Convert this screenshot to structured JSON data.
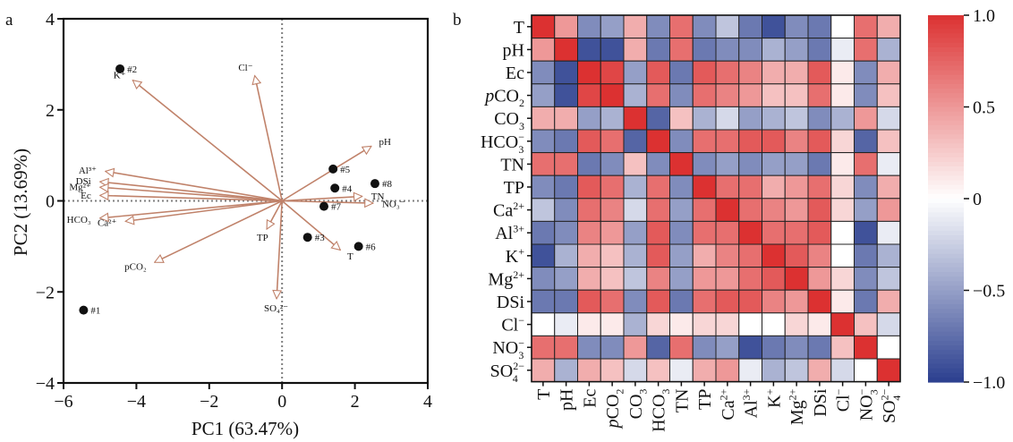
{
  "chart_data": [
    {
      "panel_label": "a",
      "type": "scatter",
      "subtype": "pca-biplot",
      "xlabel": "PC1 (63.47%)",
      "ylabel": "PC2 (13.69%)",
      "xlim": [
        -6,
        4
      ],
      "ylim": [
        -4,
        4
      ],
      "xticks": [
        -6,
        -4,
        -2,
        0,
        2,
        4
      ],
      "yticks": [
        -4,
        -2,
        0,
        2,
        4
      ],
      "xtick_labels": [
        "−6",
        "−4",
        "−2",
        "0",
        "2",
        "4"
      ],
      "ytick_labels": [
        "−4",
        "−2",
        "0",
        "2",
        "4"
      ],
      "zero_lines": "dotted",
      "grid": false,
      "arrow_color": "#c0826a",
      "point_color": "#111111",
      "points": [
        {
          "label": "#1",
          "x": -5.45,
          "y": -2.4
        },
        {
          "label": "#2",
          "x": -4.45,
          "y": 2.9
        },
        {
          "label": "#3",
          "x": 0.7,
          "y": -0.8
        },
        {
          "label": "#4",
          "x": 1.45,
          "y": 0.28
        },
        {
          "label": "#5",
          "x": 1.4,
          "y": 0.7
        },
        {
          "label": "#6",
          "x": 2.1,
          "y": -1.0
        },
        {
          "label": "#7",
          "x": 1.15,
          "y": -0.12
        },
        {
          "label": "#8",
          "x": 2.55,
          "y": 0.38
        }
      ],
      "loadings": [
        {
          "label": "K⁺",
          "x": -4.1,
          "y": 2.65
        },
        {
          "label": "Cl⁻",
          "x": -0.75,
          "y": 2.75
        },
        {
          "label": "pH",
          "x": 2.45,
          "y": 1.2
        },
        {
          "label": "Al³⁺",
          "x": -4.85,
          "y": 0.65
        },
        {
          "label": "DSi",
          "x": -5.0,
          "y": 0.42
        },
        {
          "label": "Mg²⁺",
          "x": -5.0,
          "y": 0.3
        },
        {
          "label": "Ec",
          "x": -5.0,
          "y": 0.12
        },
        {
          "label": "HCO₃",
          "x": -5.0,
          "y": -0.38
        },
        {
          "label": "Ca²⁺",
          "x": -4.3,
          "y": -0.45
        },
        {
          "label": "pCO₂",
          "x": -3.5,
          "y": -1.35
        },
        {
          "label": "TP",
          "x": -0.42,
          "y": -0.62
        },
        {
          "label": "T",
          "x": 1.6,
          "y": -1.08
        },
        {
          "label": "TN",
          "x": 2.2,
          "y": 0.1
        },
        {
          "label": "NO₃⁻",
          "x": 2.5,
          "y": -0.05
        },
        {
          "label": "SO₄²⁻",
          "x": -0.15,
          "y": -2.15
        }
      ]
    },
    {
      "panel_label": "b",
      "type": "heatmap",
      "subtype": "correlation-matrix",
      "variables": [
        "T",
        "pH",
        "Ec",
        "pCO2",
        "CO3",
        "HCO3",
        "TN",
        "TP",
        "Ca2+",
        "Al3+",
        "K+",
        "Mg2+",
        "DSi",
        "Cl-",
        "NO3-",
        "SO42-"
      ],
      "row_labels": [
        {
          "base": "T"
        },
        {
          "base": "pH"
        },
        {
          "base": "Ec"
        },
        {
          "pre": "p",
          "base": "CO",
          "sub": "2"
        },
        {
          "base": "CO",
          "sub": "3"
        },
        {
          "base": "HCO",
          "sub": "3",
          "sup": "−"
        },
        {
          "base": "TN"
        },
        {
          "base": "TP"
        },
        {
          "base": "Ca",
          "sup": "2+"
        },
        {
          "base": "Al",
          "sup": "3+"
        },
        {
          "base": "K",
          "sup": "+"
        },
        {
          "base": "Mg",
          "sup": "2+"
        },
        {
          "base": "DSi"
        },
        {
          "base": "Cl",
          "sup": "−"
        },
        {
          "base": "NO",
          "sub": "3",
          "sup": "−"
        },
        {
          "base": "SO",
          "sub": "4",
          "sup": "2−"
        }
      ],
      "col_labels": [
        {
          "base": "T"
        },
        {
          "base": "pH"
        },
        {
          "base": "Ec"
        },
        {
          "pre": "p",
          "base": "CO",
          "sub": "2"
        },
        {
          "base": "CO",
          "sub": "3"
        },
        {
          "base": "HCO",
          "sub": "3"
        },
        {
          "base": "TN"
        },
        {
          "base": "TP"
        },
        {
          "base": "Ca",
          "sup": "2+"
        },
        {
          "base": "Al",
          "sup": "3+"
        },
        {
          "base": "K",
          "sup": "+"
        },
        {
          "base": "Mg",
          "sup": "2+"
        },
        {
          "base": "DSi"
        },
        {
          "base": "Cl",
          "sup": "−"
        },
        {
          "base": "NO",
          "sub": "3",
          "sup": "−"
        },
        {
          "base": "SO",
          "sub": "4",
          "sup": "2−"
        }
      ],
      "matrix": [
        [
          1.0,
          0.5,
          -0.6,
          -0.5,
          0.4,
          -0.6,
          0.7,
          -0.6,
          -0.3,
          -0.7,
          -0.9,
          -0.6,
          -0.7,
          0.0,
          0.7,
          0.4
        ],
        [
          0.5,
          1.0,
          -0.9,
          -0.9,
          0.4,
          -0.7,
          0.7,
          -0.7,
          -0.6,
          -0.6,
          -0.4,
          -0.5,
          -0.7,
          -0.1,
          0.7,
          -0.4
        ],
        [
          -0.6,
          -0.9,
          1.0,
          0.9,
          -0.5,
          0.8,
          -0.7,
          0.8,
          0.7,
          0.6,
          0.4,
          0.4,
          0.8,
          0.1,
          -0.6,
          0.4
        ],
        [
          -0.5,
          -0.9,
          0.9,
          1.0,
          -0.4,
          0.7,
          -0.6,
          0.7,
          0.6,
          0.5,
          0.3,
          0.3,
          0.7,
          0.1,
          -0.6,
          0.3
        ],
        [
          0.4,
          0.4,
          -0.5,
          -0.4,
          1.0,
          -0.8,
          0.3,
          -0.4,
          -0.2,
          -0.5,
          -0.4,
          -0.3,
          -0.6,
          -0.4,
          0.5,
          -0.2
        ],
        [
          -0.6,
          -0.7,
          0.8,
          0.7,
          -0.8,
          1.0,
          -0.6,
          0.7,
          0.7,
          0.8,
          0.8,
          0.6,
          0.8,
          0.2,
          -0.8,
          0.3
        ],
        [
          0.7,
          0.7,
          -0.7,
          -0.6,
          0.3,
          -0.6,
          1.0,
          -0.6,
          -0.5,
          -0.6,
          -0.5,
          -0.5,
          -0.7,
          0.1,
          0.7,
          -0.1
        ],
        [
          -0.6,
          -0.7,
          0.8,
          0.7,
          -0.4,
          0.7,
          -0.6,
          1.0,
          0.7,
          0.7,
          0.4,
          0.5,
          0.7,
          0.2,
          -0.6,
          0.4
        ],
        [
          -0.3,
          -0.6,
          0.7,
          0.6,
          -0.2,
          0.7,
          -0.5,
          0.7,
          1.0,
          0.7,
          0.6,
          0.5,
          0.8,
          0.2,
          -0.5,
          0.5
        ],
        [
          -0.7,
          -0.6,
          0.6,
          0.5,
          -0.5,
          0.8,
          -0.6,
          0.7,
          0.7,
          1.0,
          0.7,
          0.7,
          0.8,
          0.0,
          -0.9,
          -0.1
        ],
        [
          -0.9,
          -0.4,
          0.4,
          0.3,
          -0.4,
          0.8,
          -0.5,
          0.4,
          0.6,
          0.7,
          1.0,
          0.8,
          0.6,
          0.0,
          -0.7,
          -0.4
        ],
        [
          -0.6,
          -0.5,
          0.4,
          0.3,
          -0.3,
          0.6,
          -0.5,
          0.5,
          0.5,
          0.7,
          0.8,
          1.0,
          0.5,
          0.2,
          -0.6,
          -0.3
        ],
        [
          -0.7,
          -0.7,
          0.8,
          0.7,
          -0.6,
          0.8,
          -0.7,
          0.7,
          0.8,
          0.8,
          0.6,
          0.5,
          1.0,
          0.1,
          -0.7,
          0.4
        ],
        [
          0.0,
          -0.1,
          0.1,
          0.1,
          -0.4,
          0.2,
          0.1,
          0.2,
          0.2,
          0.0,
          0.0,
          0.2,
          0.1,
          1.0,
          0.3,
          -0.2
        ],
        [
          0.7,
          0.7,
          -0.6,
          -0.6,
          0.5,
          -0.8,
          0.7,
          -0.6,
          -0.5,
          -0.9,
          -0.7,
          -0.6,
          -0.7,
          0.3,
          1.0,
          0.0
        ],
        [
          0.4,
          -0.4,
          0.4,
          0.3,
          -0.2,
          0.3,
          -0.1,
          0.4,
          0.5,
          -0.1,
          -0.4,
          -0.3,
          0.4,
          -0.2,
          0.0,
          1.0
        ]
      ],
      "colorbar": {
        "min": -1.0,
        "max": 1.0,
        "ticks": [
          1.0,
          0.5,
          0,
          -0.5,
          -1.0
        ],
        "tick_labels": [
          "1.0",
          "0.5",
          "0",
          "−0.5",
          "−1.0"
        ],
        "colors": {
          "low": "#2b3f8f",
          "mid": "#ffffff",
          "high": "#dc3131"
        },
        "placement": "right"
      }
    }
  ]
}
